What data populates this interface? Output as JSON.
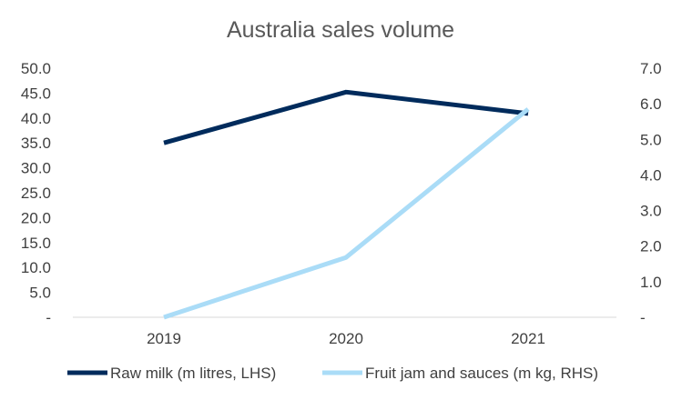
{
  "chart_data": {
    "type": "line",
    "title": "Australia sales volume",
    "categories": [
      "2019",
      "2020",
      "2021"
    ],
    "y_left": {
      "ylim": [
        0,
        50
      ],
      "ticks": [
        "-",
        "5.0",
        "10.0",
        "15.0",
        "20.0",
        "25.0",
        "30.0",
        "35.0",
        "40.0",
        "45.0",
        "50.0"
      ]
    },
    "y_right": {
      "ylim": [
        0,
        7
      ],
      "ticks": [
        "-",
        "1.0",
        "2.0",
        "3.0",
        "4.0",
        "5.0",
        "6.0",
        "7.0"
      ]
    },
    "series": [
      {
        "name": "Raw milk (m litres, LHS)",
        "axis": "left",
        "color": "#002b5c",
        "values": [
          35.0,
          45.2,
          40.9
        ]
      },
      {
        "name": "Fruit jam and sauces (m kg, RHS)",
        "axis": "right",
        "color": "#aadcf7",
        "values": [
          0.0,
          1.68,
          5.85
        ]
      }
    ],
    "grid": false,
    "legend": "bottom"
  }
}
